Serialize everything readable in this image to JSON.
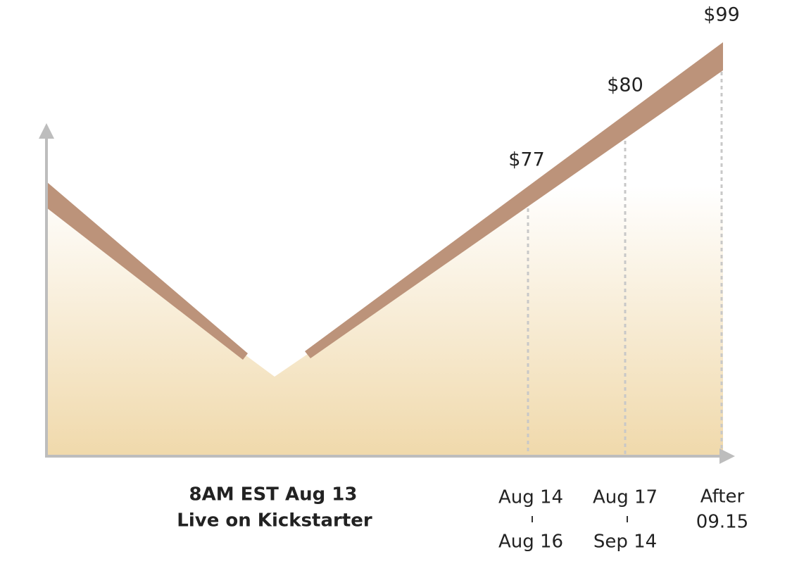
{
  "tiers": [
    {
      "price": "$77",
      "start": "Aug 14",
      "end": "Aug 16"
    },
    {
      "price": "$80",
      "start": "Aug 17",
      "end": "Sep 14"
    },
    {
      "price": "$99",
      "start": "After",
      "end": "09.15"
    }
  ],
  "launch": {
    "line1": "8AM EST Aug 13",
    "line2": "Live on Kickstarter"
  }
}
